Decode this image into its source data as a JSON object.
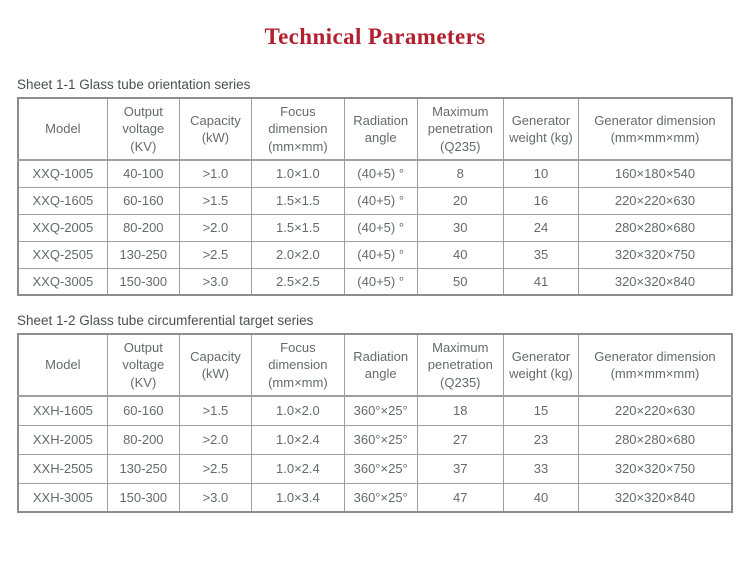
{
  "page": {
    "title": "Technical Parameters"
  },
  "colors": {
    "title_accent": "#b22030",
    "table_text": "#66696c",
    "table_border": "#9da0a3",
    "label_text": "#4c4e50"
  },
  "tables": [
    {
      "caption": "Sheet 1-1 Glass tube orientation series",
      "headers": [
        "Model",
        "Output voltage (KV)",
        "Capacity (kW)",
        "Focus dimension (mm×mm)",
        "Radiation angle",
        "Maximum penetration (Q235)",
        "Generator weight (kg)",
        "Generator dimension (mm×mm×mm)"
      ],
      "rows": [
        [
          "XXQ-1005",
          "40-100",
          ">1.0",
          "1.0×1.0",
          "(40+5) °",
          "8",
          "10",
          "160×180×540"
        ],
        [
          "XXQ-1605",
          "60-160",
          ">1.5",
          "1.5×1.5",
          "(40+5) °",
          "20",
          "16",
          "220×220×630"
        ],
        [
          "XXQ-2005",
          "80-200",
          ">2.0",
          "1.5×1.5",
          "(40+5) °",
          "30",
          "24",
          "280×280×680"
        ],
        [
          "XXQ-2505",
          "130-250",
          ">2.5",
          "2.0×2.0",
          "(40+5) °",
          "40",
          "35",
          "320×320×750"
        ],
        [
          "XXQ-3005",
          "150-300",
          ">3.0",
          "2.5×2.5",
          "(40+5) °",
          "50",
          "41",
          "320×320×840"
        ]
      ]
    },
    {
      "caption": "Sheet 1-2 Glass tube circumferential target series",
      "headers": [
        "Model",
        "Output voltage (KV)",
        "Capacity (kW)",
        "Focus dimension (mm×mm)",
        "Radiation angle",
        "Maximum penetration (Q235)",
        "Generator weight (kg)",
        "Generator dimension (mm×mm×mm)"
      ],
      "rows": [
        [
          "XXH-1605",
          "60-160",
          ">1.5",
          "1.0×2.0",
          "360°×25°",
          "18",
          "15",
          "220×220×630"
        ],
        [
          "XXH-2005",
          "80-200",
          ">2.0",
          "1.0×2.4",
          "360°×25°",
          "27",
          "23",
          "280×280×680"
        ],
        [
          "XXH-2505",
          "130-250",
          ">2.5",
          "1.0×2.4",
          "360°×25°",
          "37",
          "33",
          "320×320×750"
        ],
        [
          "XXH-3005",
          "150-300",
          ">3.0",
          "1.0×3.4",
          "360°×25°",
          "47",
          "40",
          "320×320×840"
        ]
      ]
    }
  ]
}
